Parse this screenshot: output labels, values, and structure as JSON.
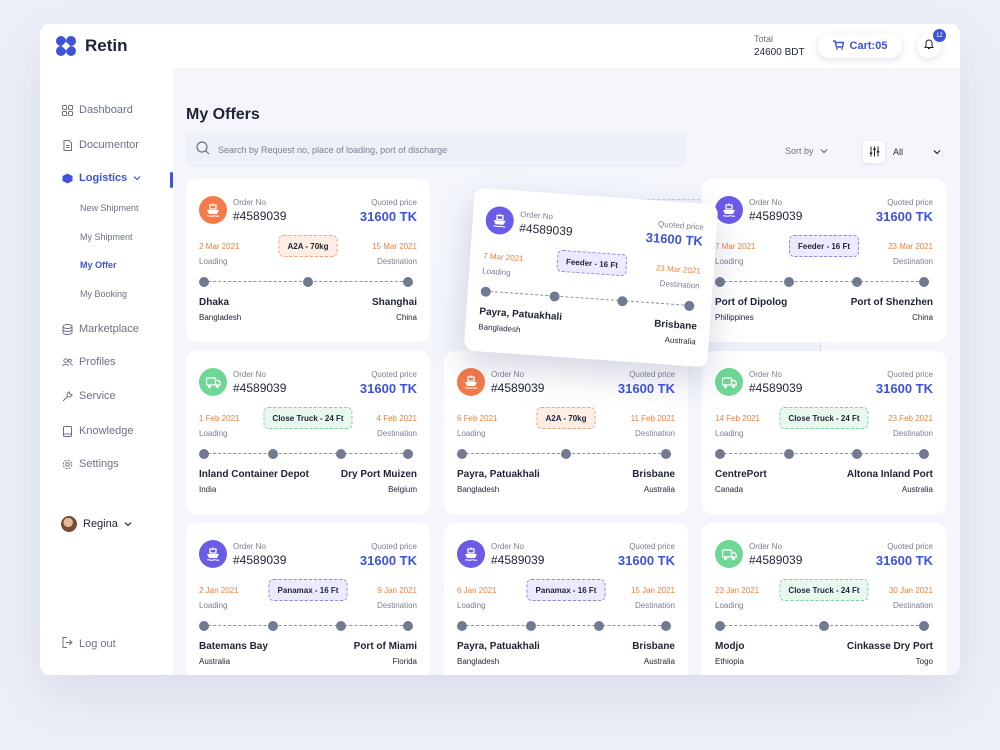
{
  "app": {
    "name": "Retin"
  },
  "header": {
    "total_label": "Total",
    "total_value": "24600 BDT",
    "cart_label": "Cart:05",
    "notification_count": "12"
  },
  "sidebar": {
    "items": [
      {
        "label": "Dashboard"
      },
      {
        "label": "Documentor"
      },
      {
        "label": "Logistics"
      },
      {
        "label": "Marketplace"
      },
      {
        "label": "Profiles"
      },
      {
        "label": "Service"
      },
      {
        "label": "Knowledge"
      },
      {
        "label": "Settings"
      }
    ],
    "logistics_sub": [
      {
        "label": "New Shipment"
      },
      {
        "label": "My Shipment"
      },
      {
        "label": "My Offer"
      },
      {
        "label": "My Booking"
      }
    ],
    "user": "Regina",
    "logout": "Log out"
  },
  "page": {
    "title": "My Offers",
    "search_placeholder": "Search by Request no, place of loading, port of discharge",
    "sort_label": "Sort by",
    "filter_value": "All"
  },
  "cards": [
    {
      "icon": "ship-icon",
      "color": "#f47a4a",
      "order_label": "Order No",
      "order_no": "#4589039",
      "price_label": "Quoted price",
      "price": "31600 TK",
      "date_from": "2 Mar 2021",
      "date_to": "15 Mar 2021",
      "from_label": "Loading",
      "to_label": "Destination",
      "badge": "A2A - 70kg",
      "badge_style": "orange",
      "origin_city": "Dhaka",
      "origin_country": "Bangladesh",
      "dest_city": "Shanghai",
      "dest_country": "China",
      "stop_positions": [
        0,
        0.5,
        0.98
      ]
    },
    {
      "icon": "ship-icon",
      "color": "#6b5ce7",
      "order_label": "Order No",
      "order_no": "#4589039",
      "price_label": "Quoted price",
      "price": "31600 TK",
      "date_from": "7 Mar 2021",
      "date_to": "23 Mar 2021",
      "from_label": "Loading",
      "to_label": "Destination",
      "badge": "Feeder - 16 Ft",
      "badge_style": "purple",
      "origin_city": "Payra, Patuakhali",
      "origin_country": "Bangladesh",
      "dest_city": "Brisbane",
      "dest_country": "Australia",
      "stop_positions": [
        0,
        0.33,
        0.66,
        0.98
      ]
    },
    {
      "icon": "ship-icon",
      "color": "#6b5ce7",
      "order_label": "Order No",
      "order_no": "#4589039",
      "price_label": "Quoted price",
      "price": "31600 TK",
      "date_from": "7 Mar 2021",
      "date_to": "23 Mar 2021",
      "from_label": "Loading",
      "to_label": "Destination",
      "badge": "Feeder - 16 Ft",
      "badge_style": "purple",
      "origin_city": "Port of Dipolog",
      "origin_country": "Philippines",
      "dest_city": "Port of Shenzhen",
      "dest_country": "China",
      "stop_positions": [
        0,
        0.33,
        0.66,
        0.98
      ]
    },
    {
      "icon": "truck-icon",
      "color": "#6fd795",
      "order_label": "Order No",
      "order_no": "#4589039",
      "price_label": "Quoted price",
      "price": "31600 TK",
      "date_from": "1 Feb 2021",
      "date_to": "4 Feb 2021",
      "from_label": "Loading",
      "to_label": "Destination",
      "badge": "Close Truck - 24 Ft",
      "badge_style": "green",
      "origin_city": "Inland Container Depot",
      "origin_country": "India",
      "dest_city": "Dry Port Muizen",
      "dest_country": "Belgium",
      "stop_positions": [
        0,
        0.33,
        0.66,
        0.98
      ]
    },
    {
      "icon": "ship-icon",
      "color": "#f47a4a",
      "order_label": "Order No",
      "order_no": "#4589039",
      "price_label": "Quoted price",
      "price": "31600 TK",
      "date_from": "6 Feb 2021",
      "date_to": "11 Feb 2021",
      "from_label": "Loading",
      "to_label": "Destination",
      "badge": "A2A - 70kg",
      "badge_style": "orange",
      "origin_city": "Payra, Patuakhali",
      "origin_country": "Bangladesh",
      "dest_city": "Brisbane",
      "dest_country": "Australia",
      "stop_positions": [
        0,
        0.5,
        0.98
      ]
    },
    {
      "icon": "truck-icon",
      "color": "#6fd795",
      "order_label": "Order No",
      "order_no": "#4589039",
      "price_label": "Quoted price",
      "price": "31600 TK",
      "date_from": "14 Feb 2021",
      "date_to": "23 Feb 2021",
      "from_label": "Loading",
      "to_label": "Destination",
      "badge": "Close Truck - 24 Ft",
      "badge_style": "green",
      "origin_city": "CentrePort",
      "origin_country": "Canada",
      "dest_city": "Altona Inland Port",
      "dest_country": "Australia",
      "stop_positions": [
        0,
        0.33,
        0.66,
        0.98
      ]
    },
    {
      "icon": "ship-icon",
      "color": "#6b5ce7",
      "order_label": "Order No",
      "order_no": "#4589039",
      "price_label": "Quoted price",
      "price": "31600 TK",
      "date_from": "2 Jan 2021",
      "date_to": "9 Jan 2021",
      "from_label": "Loading",
      "to_label": "Destination",
      "badge": "Panamax - 16 Ft",
      "badge_style": "purple",
      "origin_city": "Batemans Bay",
      "origin_country": "Australia",
      "dest_city": "Port of Miami",
      "dest_country": "Florida",
      "stop_positions": [
        0,
        0.33,
        0.66,
        0.98
      ]
    },
    {
      "icon": "ship-icon",
      "color": "#6b5ce7",
      "order_label": "Order No",
      "order_no": "#4589039",
      "price_label": "Quoted price",
      "price": "31600 TK",
      "date_from": "6 Jan 2021",
      "date_to": "15 Jan 2021",
      "from_label": "Loading",
      "to_label": "Destination",
      "badge": "Panamax - 16 Ft",
      "badge_style": "purple",
      "origin_city": "Payra, Patuakhali",
      "origin_country": "Bangladesh",
      "dest_city": "Brisbane",
      "dest_country": "Australia",
      "stop_positions": [
        0,
        0.33,
        0.66,
        0.98
      ]
    },
    {
      "icon": "truck-icon",
      "color": "#6fd795",
      "order_label": "Order No",
      "order_no": "#4589039",
      "price_label": "Quoted price",
      "price": "31600 TK",
      "date_from": "23 Jan 2021",
      "date_to": "30 Jan 2021",
      "from_label": "Loading",
      "to_label": "Destination",
      "badge": "Close Truck - 24 Ft",
      "badge_style": "green",
      "origin_city": "Modjo",
      "origin_country": "Ethiopia",
      "dest_city": "Cinkasse Dry Port",
      "dest_country": "Togo",
      "stop_positions": [
        0,
        0.5,
        0.98
      ]
    }
  ]
}
